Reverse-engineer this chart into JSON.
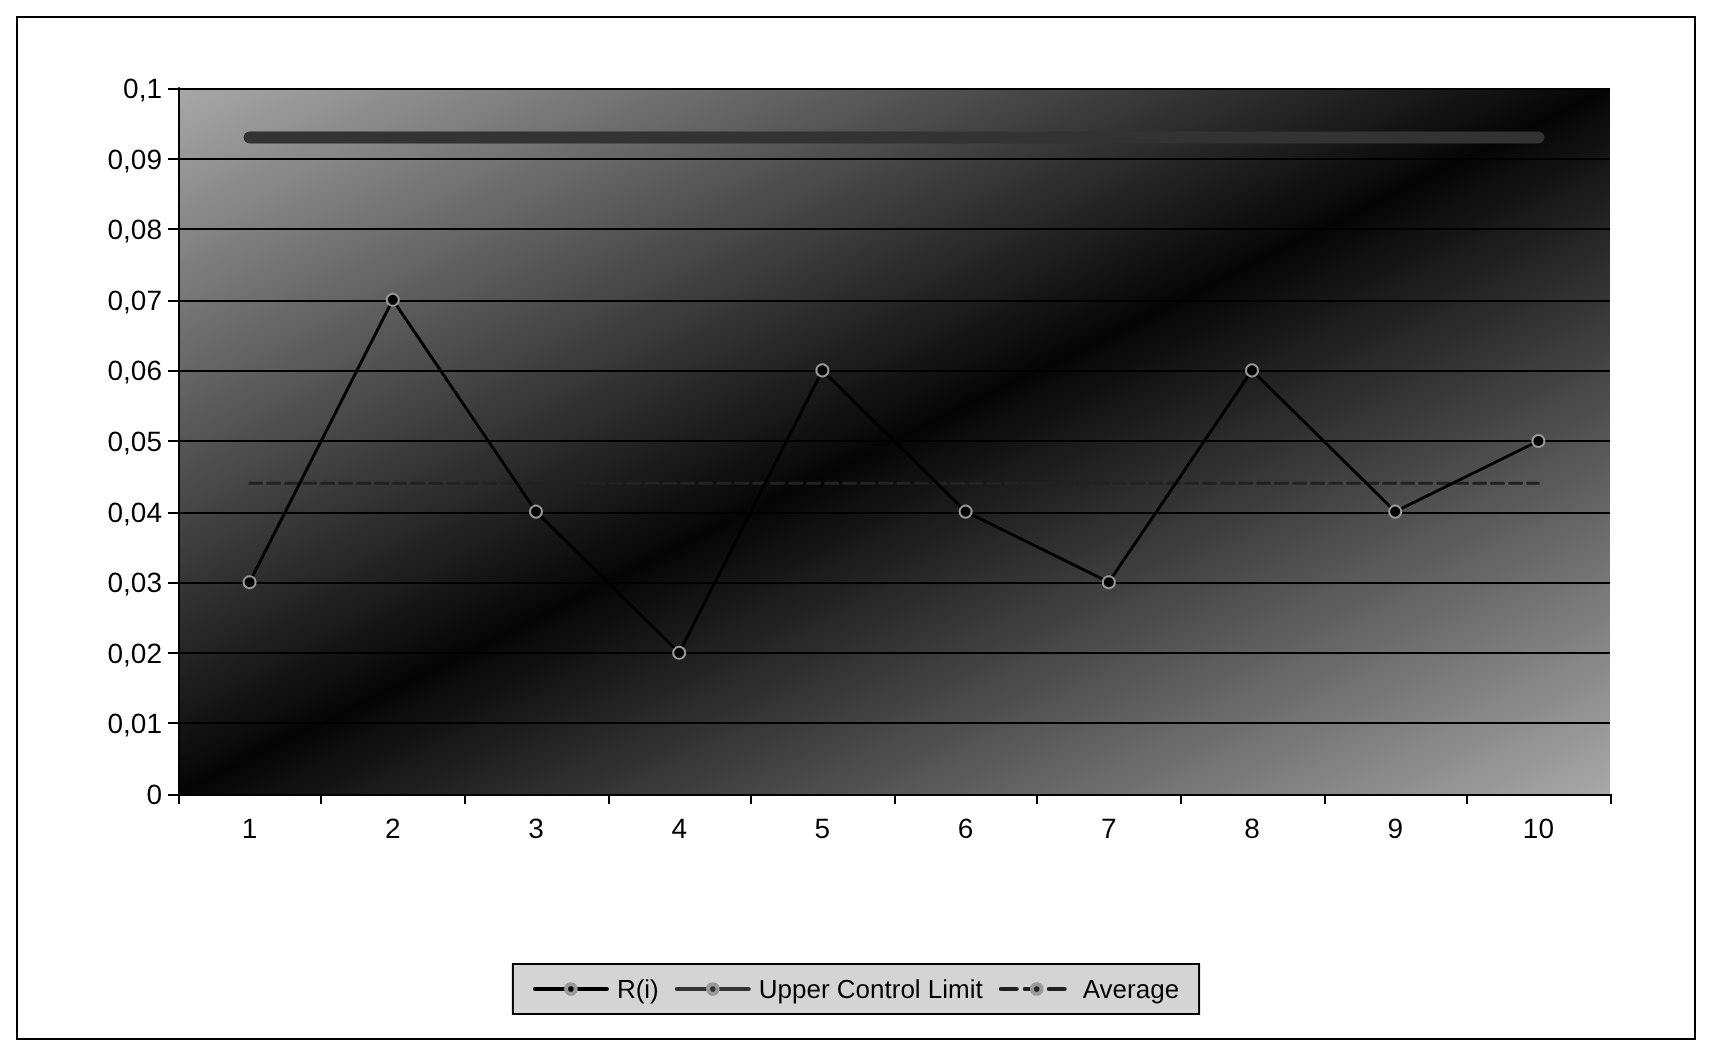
{
  "chart_data": {
    "type": "line",
    "categories": [
      "1",
      "2",
      "3",
      "4",
      "5",
      "6",
      "7",
      "8",
      "9",
      "10"
    ],
    "series": [
      {
        "name": "R(i)",
        "color": "#000000",
        "marker": "circle",
        "line_style": "solid",
        "values": [
          0.03,
          0.07,
          0.04,
          0.02,
          0.06,
          0.04,
          0.03,
          0.06,
          0.04,
          0.05
        ]
      },
      {
        "name": "Upper Control Limit",
        "color": "#333333",
        "marker": "none",
        "line_style": "solid",
        "values": [
          0.093,
          0.093,
          0.093,
          0.093,
          0.093,
          0.093,
          0.093,
          0.093,
          0.093,
          0.093
        ]
      },
      {
        "name": "Average",
        "color": "#222222",
        "marker": "none",
        "line_style": "dashed",
        "values": [
          0.044,
          0.044,
          0.044,
          0.044,
          0.044,
          0.044,
          0.044,
          0.044,
          0.044,
          0.044
        ]
      }
    ],
    "ylim": [
      0,
      0.1
    ],
    "yticks": [
      0,
      {
        "value": 0.01,
        "label": "0,01"
      },
      {
        "value": 0.02,
        "label": "0,02"
      },
      {
        "value": 0.03,
        "label": "0,03"
      },
      {
        "value": 0.04,
        "label": "0,04"
      },
      {
        "value": 0.05,
        "label": "0,05"
      },
      {
        "value": 0.06,
        "label": "0,06"
      },
      {
        "value": 0.07,
        "label": "0,07"
      },
      {
        "value": 0.08,
        "label": "0,08"
      },
      {
        "value": 0.09,
        "label": "0,09"
      },
      {
        "value": 0.1,
        "label": "0,1"
      }
    ],
    "grid": "y",
    "legend": "bottom"
  }
}
